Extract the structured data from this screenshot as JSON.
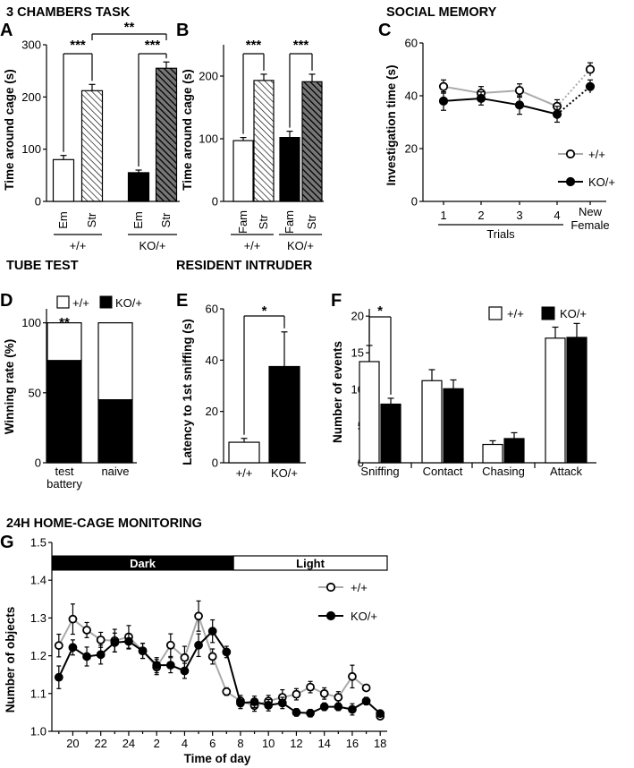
{
  "sections": {
    "chambers": "3 CHAMBERS TASK",
    "social_memory": "SOCIAL MEMORY",
    "tube_test": "TUBE TEST",
    "resident_intruder": "RESIDENT INTRUDER",
    "homecage": "24H HOME-CAGE MONITORING"
  },
  "chart_data": [
    {
      "panel": "A",
      "type": "bar",
      "ylabel": "Time around cage (s)",
      "ylim": [
        0,
        300
      ],
      "yticks": [
        0,
        100,
        200,
        300
      ],
      "categories": [
        "Em",
        "Str",
        "Em",
        "Str"
      ],
      "groups": [
        "+/+",
        "KO/+"
      ],
      "values": [
        80,
        212,
        55,
        255
      ],
      "errors": [
        8,
        12,
        5,
        12
      ],
      "fills": [
        "white",
        "hatch",
        "black",
        "crosshatch"
      ],
      "significance": [
        {
          "pair": [
            0,
            1
          ],
          "label": "***"
        },
        {
          "pair": [
            2,
            3
          ],
          "label": "***"
        },
        {
          "pair": [
            1,
            3
          ],
          "label": "**"
        }
      ]
    },
    {
      "panel": "B",
      "type": "bar",
      "ylabel": "Time around cage (s)",
      "ylim": [
        0,
        250
      ],
      "yticks": [
        0,
        100,
        200
      ],
      "categories": [
        "Fam",
        "Str",
        "Fam",
        "Str"
      ],
      "groups": [
        "+/+",
        "KO/+"
      ],
      "values": [
        97,
        193,
        102,
        191
      ],
      "errors": [
        5,
        10,
        10,
        12
      ],
      "fills": [
        "white",
        "hatch",
        "black",
        "crosshatch"
      ],
      "significance": [
        {
          "pair": [
            0,
            1
          ],
          "label": "***"
        },
        {
          "pair": [
            2,
            3
          ],
          "label": "***"
        }
      ]
    },
    {
      "panel": "C",
      "type": "line",
      "ylabel": "Investigation time (s)",
      "ylim": [
        0,
        60
      ],
      "yticks": [
        0,
        20,
        40,
        60
      ],
      "x": [
        "1",
        "2",
        "3",
        "4"
      ],
      "extra_label": [
        "New",
        "Female"
      ],
      "xgroup_label": "Trials",
      "series": [
        {
          "name": "+/+",
          "values": [
            43.5,
            41,
            42,
            36
          ],
          "errors": [
            2.5,
            2.5,
            2.5,
            2.5
          ],
          "new_female": 50,
          "new_female_error": 2.5
        },
        {
          "name": "KO/+",
          "values": [
            38,
            39,
            36.5,
            33
          ],
          "errors": [
            3.5,
            2.5,
            3.5,
            3
          ],
          "new_female": 43.5,
          "new_female_error": 2.5
        }
      ]
    },
    {
      "panel": "D",
      "type": "bar",
      "ylabel": "Winning rate (%)",
      "ylim": [
        0,
        110
      ],
      "yticks": [
        0,
        50,
        100
      ],
      "categories": [
        [
          "test",
          "battery"
        ],
        [
          "naive"
        ]
      ],
      "series": [
        {
          "name": "KO/+",
          "values": [
            73,
            45
          ]
        },
        {
          "name": "+/+",
          "values": [
            27,
            55
          ]
        }
      ],
      "significance": [
        {
          "bar": 0,
          "label": "**"
        }
      ]
    },
    {
      "panel": "E",
      "type": "bar",
      "ylabel": "Latency to 1st sniffing (s)",
      "ylim": [
        0,
        60
      ],
      "yticks": [
        0,
        20,
        40,
        60
      ],
      "categories": [
        "+/+",
        "KO/+"
      ],
      "values": [
        8,
        37.5
      ],
      "errors": [
        1.5,
        13.5
      ],
      "significance": [
        {
          "pair": [
            0,
            1
          ],
          "label": "*"
        }
      ]
    },
    {
      "panel": "F",
      "type": "bar",
      "ylabel": "Number of events",
      "ylim": [
        0,
        21
      ],
      "yticks": [
        0,
        5,
        10,
        15,
        20
      ],
      "categories": [
        "Sniffing",
        "Contact",
        "Chasing",
        "Attack"
      ],
      "series": [
        {
          "name": "+/+",
          "values": [
            13.8,
            11.2,
            2.5,
            17
          ],
          "errors": [
            2.2,
            1.5,
            0.5,
            1.5
          ]
        },
        {
          "name": "KO/+",
          "values": [
            8,
            10.1,
            3.3,
            17.1
          ],
          "errors": [
            0.8,
            1.2,
            0.8,
            1.9
          ]
        }
      ],
      "significance": [
        {
          "category": 0,
          "label": "*"
        }
      ]
    },
    {
      "panel": "G",
      "type": "line",
      "ylabel": "Number of objects",
      "xlabel": "Time of day",
      "ylim": [
        1.0,
        1.5
      ],
      "yticks": [
        "1.0",
        "1.1",
        "1.2",
        "1.3",
        "1.4",
        "1.5"
      ],
      "xlim": [
        18.5,
        42.5
      ],
      "xticks": [
        20,
        22,
        24,
        26,
        28,
        30,
        32,
        34,
        36,
        38,
        40,
        42
      ],
      "xticklabels": [
        "20",
        "22",
        "24",
        "2",
        "4",
        "6",
        "8",
        "10",
        "12",
        "14",
        "16",
        "18"
      ],
      "phases": [
        {
          "label": "Dark",
          "from": 18.5,
          "to": 31.5
        },
        {
          "label": "Light",
          "from": 31.5,
          "to": 42.5
        }
      ],
      "x": [
        19,
        20,
        21,
        22,
        23,
        24,
        25,
        26,
        27,
        28,
        29,
        30,
        31,
        32,
        33,
        34,
        35,
        36,
        37,
        38,
        39,
        40,
        41,
        42
      ],
      "series": [
        {
          "name": "+/+",
          "values": [
            1.227,
            1.297,
            1.268,
            1.242,
            1.24,
            1.25,
            1.213,
            1.17,
            1.228,
            1.195,
            1.305,
            1.198,
            1.105,
            1.08,
            1.068,
            1.08,
            1.09,
            1.098,
            1.117,
            1.1,
            1.09,
            1.145,
            1.115,
            1.04
          ],
          "errors": [
            0.03,
            0.04,
            0.02,
            0.02,
            0.03,
            0.03,
            0.02,
            0.02,
            0.03,
            0.03,
            0.04,
            0.02,
            0.01,
            0.015,
            0.015,
            0.015,
            0.02,
            0.015,
            0.015,
            0.015,
            0.015,
            0.03,
            0.005,
            0.005
          ],
          "plot_last": false
        },
        {
          "name": "KO/+",
          "values": [
            1.143,
            1.222,
            1.198,
            1.203,
            1.235,
            1.238,
            1.213,
            1.175,
            1.175,
            1.16,
            1.228,
            1.265,
            1.21,
            1.075,
            1.078,
            1.069,
            1.075,
            1.05,
            1.048,
            1.065,
            1.065,
            1.058,
            1.08,
            1.047
          ],
          "errors": [
            0.03,
            0.02,
            0.025,
            0.025,
            0.025,
            0.02,
            0.02,
            0.02,
            0.02,
            0.02,
            0.03,
            0.03,
            0.015,
            0.015,
            0.015,
            0.015,
            0.015,
            0.01,
            0.01,
            0.01,
            0.01,
            0.015,
            0.01,
            0.005
          ],
          "plot_last": true
        }
      ]
    }
  ]
}
